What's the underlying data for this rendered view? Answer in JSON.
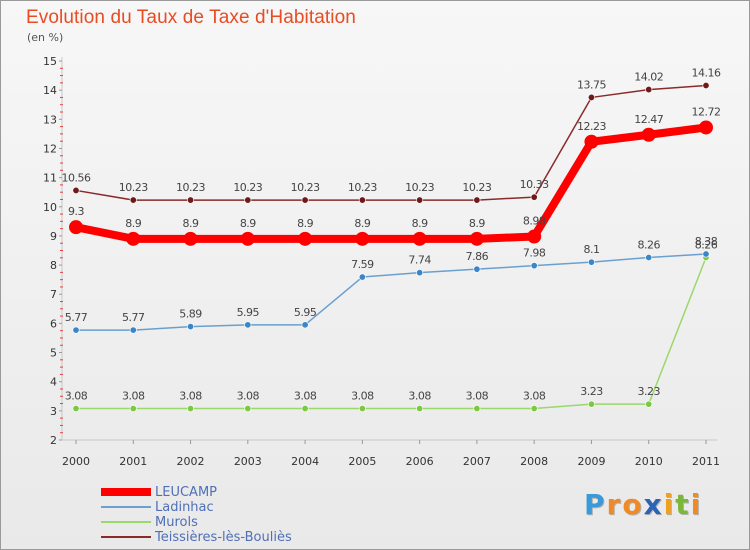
{
  "header": {
    "title": "Evolution du Taux de Taxe d'Habitation",
    "subtitle": "(en %)"
  },
  "brand": {
    "letters": [
      "P",
      "r",
      "o",
      "x",
      "i",
      "t",
      "i"
    ],
    "colors": [
      "#3a9ad9",
      "#f08a24",
      "#f08a24",
      "#2a63b8",
      "#f0a020",
      "#7ab83a",
      "#f08a24"
    ]
  },
  "chart_data": {
    "type": "line",
    "title": "Evolution du Taux de Taxe d'Habitation",
    "subtitle": "(en %)",
    "x": [
      "2000",
      "2001",
      "2002",
      "2003",
      "2004",
      "2005",
      "2006",
      "2007",
      "2008",
      "2009",
      "2010",
      "2011"
    ],
    "ylim": [
      2,
      15
    ],
    "yticks": [
      2,
      3,
      4,
      5,
      6,
      7,
      8,
      9,
      10,
      11,
      12,
      13,
      14,
      15
    ],
    "grid": false,
    "legend_position": "bottom-left",
    "series": [
      {
        "name": "LEUCAMP",
        "color": "#ff0000",
        "values": [
          9.3,
          8.9,
          8.9,
          8.9,
          8.9,
          8.9,
          8.9,
          8.9,
          8.98,
          12.23,
          12.47,
          12.72
        ],
        "labels": [
          "9.3",
          "8.9",
          "8.9",
          "8.9",
          "8.9",
          "8.9",
          "8.9",
          "8.9",
          "8.98",
          "12.23",
          "12.47",
          "12.72"
        ]
      },
      {
        "name": "Ladinhac",
        "color": "#6a9fd0",
        "values": [
          5.77,
          5.77,
          5.89,
          5.95,
          5.95,
          7.59,
          7.74,
          7.86,
          7.98,
          8.1,
          8.26,
          8.38
        ],
        "labels": [
          "5.77",
          "5.77",
          "5.89",
          "5.95",
          "5.95",
          "7.59",
          "7.74",
          "7.86",
          "7.98",
          "8.1",
          "8.26",
          "8.38"
        ]
      },
      {
        "name": "Murols",
        "color": "#9ad86a",
        "values": [
          3.08,
          3.08,
          3.08,
          3.08,
          3.08,
          3.08,
          3.08,
          3.08,
          3.08,
          3.23,
          3.23,
          8.26
        ],
        "labels": [
          "3.08",
          "3.08",
          "3.08",
          "3.08",
          "3.08",
          "3.08",
          "3.08",
          "3.08",
          "3.08",
          "3.23",
          "3.23",
          "8.26"
        ]
      },
      {
        "name": "Teissières-lès-Bouliès",
        "color": "#8a2a2a",
        "values": [
          10.56,
          10.23,
          10.23,
          10.23,
          10.23,
          10.23,
          10.23,
          10.23,
          10.33,
          13.75,
          14.02,
          14.16
        ],
        "labels": [
          "10.56",
          "10.23",
          "10.23",
          "10.23",
          "10.23",
          "10.23",
          "10.23",
          "10.23",
          "10.33",
          "13.75",
          "14.02",
          "14.16"
        ]
      }
    ]
  }
}
